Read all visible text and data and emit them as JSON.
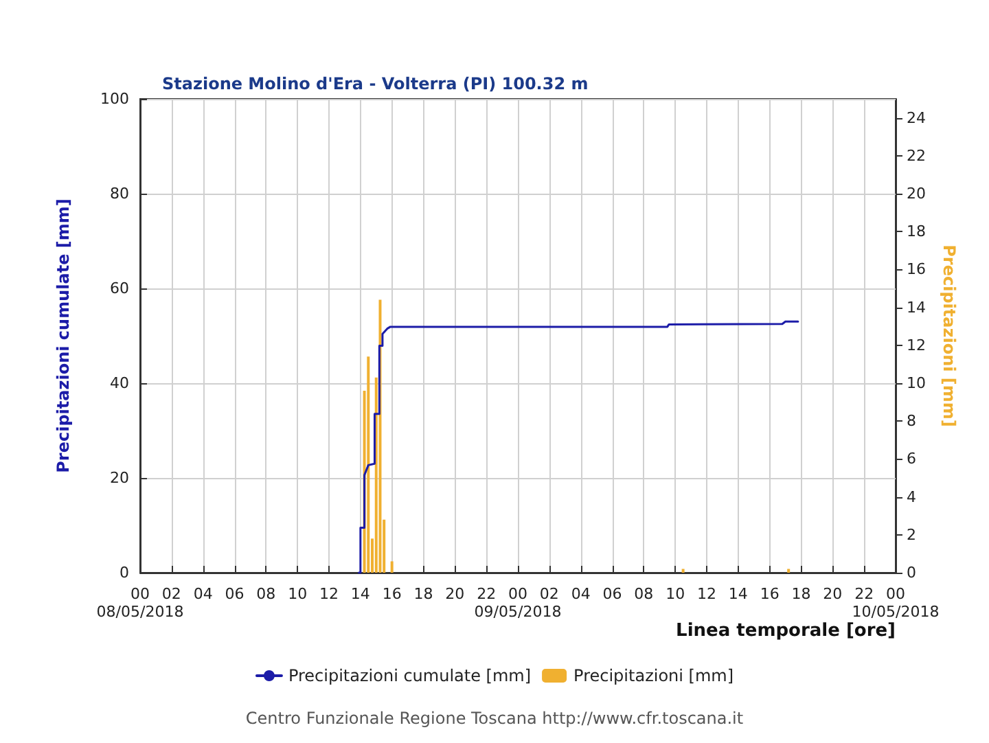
{
  "chart_data": {
    "type": "line",
    "title": "Stazione Molino d'Era - Volterra (PI) 100.32 m",
    "xlabel": "Linea temporale [ore]",
    "ylabel": "Precipitazioni cumulate [mm]",
    "y2label": "Precipitazioni [mm]",
    "xlim": [
      "2018-05-08T00:00",
      "2018-05-10T00:00"
    ],
    "x2lim": [
      "2018-05-08T00:00",
      "2018-05-10T00:00"
    ],
    "x2ticks": [
      {
        "value": "2018-05-08T00:00",
        "label": "08/05/2018"
      },
      {
        "value": "2018-05-09T00:00",
        "label": "09/05/2018"
      },
      {
        "value": "2018-05-10T00:00",
        "label": "10/05/2018"
      }
    ],
    "xticks": [
      {
        "value": "2018-05-08T00:00",
        "label": "00"
      },
      {
        "value": "2018-05-08T02:00",
        "label": "02"
      },
      {
        "value": "2018-05-08T04:00",
        "label": "04"
      },
      {
        "value": "2018-05-08T06:00",
        "label": "06"
      },
      {
        "value": "2018-05-08T08:00",
        "label": "08"
      },
      {
        "value": "2018-05-08T10:00",
        "label": "10"
      },
      {
        "value": "2018-05-08T12:00",
        "label": "12"
      },
      {
        "value": "2018-05-08T14:00",
        "label": "14"
      },
      {
        "value": "2018-05-08T16:00",
        "label": "16"
      },
      {
        "value": "2018-05-08T18:00",
        "label": "18"
      },
      {
        "value": "2018-05-08T20:00",
        "label": "20"
      },
      {
        "value": "2018-05-08T22:00",
        "label": "22"
      },
      {
        "value": "2018-05-09T00:00",
        "label": "00"
      },
      {
        "value": "2018-05-09T02:00",
        "label": "02"
      },
      {
        "value": "2018-05-09T04:00",
        "label": "04"
      },
      {
        "value": "2018-05-09T06:00",
        "label": "06"
      },
      {
        "value": "2018-05-09T08:00",
        "label": "08"
      },
      {
        "value": "2018-05-09T10:00",
        "label": "10"
      },
      {
        "value": "2018-05-09T12:00",
        "label": "12"
      },
      {
        "value": "2018-05-09T14:00",
        "label": "14"
      },
      {
        "value": "2018-05-09T16:00",
        "label": "16"
      },
      {
        "value": "2018-05-09T18:00",
        "label": "18"
      },
      {
        "value": "2018-05-09T20:00",
        "label": "20"
      },
      {
        "value": "2018-05-09T22:00",
        "label": "22"
      },
      {
        "value": "2018-05-10T00:00",
        "label": "00"
      }
    ],
    "ylim": [
      0,
      100
    ],
    "yticks": [
      0,
      20,
      40,
      60,
      80,
      100
    ],
    "y2lim": [
      0,
      25
    ],
    "y2ticks": [
      0,
      2,
      4,
      6,
      8,
      10,
      12,
      14,
      16,
      18,
      20,
      22,
      24
    ],
    "grid": true,
    "legend": "bottom",
    "marker": "none",
    "line_style": "solid",
    "annotations": [
      "Centro Funzionale Regione Toscana http://www.cfr.toscana.it"
    ],
    "series": [
      {
        "name": "Precipitazioni cumulate [mm]",
        "color": "#1c1ca8",
        "x": [
          "2018-05-08T13:54",
          "2018-05-08T14:00",
          "2018-05-08T14:00",
          "2018-05-08T14:15",
          "2018-05-08T14:15",
          "2018-05-08T14:30",
          "2018-05-08T14:54",
          "2018-05-08T14:54",
          "2018-05-08T15:12",
          "2018-05-08T15:12",
          "2018-05-08T15:24",
          "2018-05-08T15:24",
          "2018-05-08T15:42",
          "2018-05-08T15:54",
          "2018-05-09T09:30",
          "2018-05-09T09:36",
          "2018-05-09T16:48",
          "2018-05-09T17:00",
          "2018-05-09T17:48"
        ],
        "values": [
          0,
          0,
          9.5,
          9.5,
          20.6,
          22.7,
          23,
          33.5,
          33.5,
          47.9,
          47.9,
          50.4,
          51.5,
          51.9,
          51.9,
          52.4,
          52.5,
          53.0,
          53.0
        ]
      },
      {
        "name": "Precipitazioni [mm]",
        "type": "bar",
        "axis": "y2",
        "color": "#f0b030",
        "x": [
          "2018-05-08T14:15",
          "2018-05-08T14:30",
          "2018-05-08T14:45",
          "2018-05-08T15:00",
          "2018-05-08T15:15",
          "2018-05-08T15:30",
          "2018-05-08T16:00",
          "2018-05-09T10:30",
          "2018-05-09T17:12"
        ],
        "values": [
          9.6,
          11.4,
          1.8,
          10.3,
          14.4,
          2.8,
          0.6,
          0.2,
          0.2
        ]
      }
    ]
  }
}
